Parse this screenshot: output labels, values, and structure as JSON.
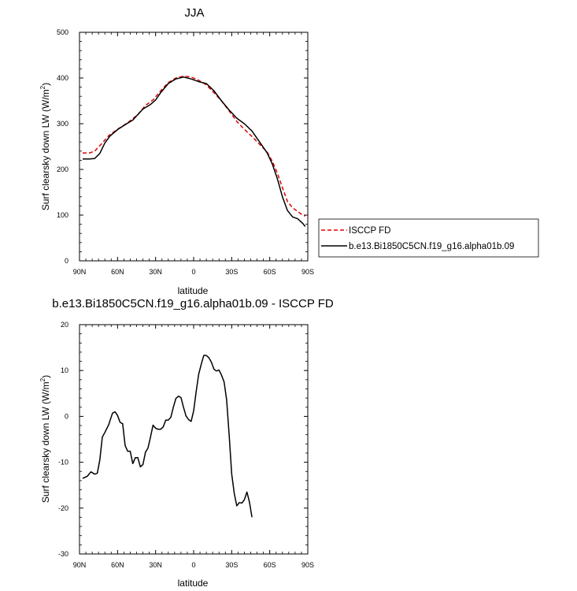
{
  "figure": {
    "panel_top_title": "JJA",
    "panel_bottom_title": "b.e13.Bi1850C5CN.f19_g16.alpha01b.09 - ISCCP FD"
  },
  "chart_data": [
    {
      "type": "line",
      "title": "JJA",
      "xlabel": "latitude",
      "ylabel_main": "Surf clearsky down LW (W/m",
      "ylabel_sup": "2",
      "ylabel_close": ")",
      "xlim": [
        90,
        -90
      ],
      "ylim": [
        0,
        500
      ],
      "xticks": [
        {
          "value": 90,
          "label": "90N"
        },
        {
          "value": 60,
          "label": "60N"
        },
        {
          "value": 30,
          "label": "30N"
        },
        {
          "value": 0,
          "label": "0"
        },
        {
          "value": -30,
          "label": "30S"
        },
        {
          "value": -60,
          "label": "60S"
        },
        {
          "value": -90,
          "label": "90S"
        }
      ],
      "yticks": [
        0,
        100,
        200,
        300,
        400,
        500
      ],
      "legend": {
        "position": "right-outside"
      },
      "series": [
        {
          "name": "ISCCP FD",
          "color": "#dd0000",
          "dash": "dashed",
          "points": [
            [
              87.5,
              236
            ],
            [
              82,
              236
            ],
            [
              78,
              240
            ],
            [
              72,
              258
            ],
            [
              67,
              274
            ],
            [
              60,
              288
            ],
            [
              52,
              302
            ],
            [
              44,
              320
            ],
            [
              38,
              340
            ],
            [
              32,
              352
            ],
            [
              26,
              372
            ],
            [
              20,
              390
            ],
            [
              14,
              400
            ],
            [
              8,
              404
            ],
            [
              2,
              402
            ],
            [
              -4,
              395
            ],
            [
              -10,
              385
            ],
            [
              -16,
              368
            ],
            [
              -22,
              350
            ],
            [
              -28,
              328
            ],
            [
              -34,
              305
            ],
            [
              -40,
              288
            ],
            [
              -46,
              272
            ],
            [
              -52,
              255
            ],
            [
              -58,
              238
            ],
            [
              -62,
              218
            ],
            [
              -66,
              192
            ],
            [
              -70,
              160
            ],
            [
              -74,
              130
            ],
            [
              -78,
              116
            ],
            [
              -82,
              108
            ],
            [
              -86,
              100
            ],
            [
              -88,
              98
            ]
          ]
        },
        {
          "name": "b.e13.Bi1850C5CN.f19_g16.alpha01b.09",
          "color": "#000000",
          "dash": "solid",
          "points": [
            [
              87.5,
              223
            ],
            [
              82,
              223
            ],
            [
              78,
              224
            ],
            [
              74,
              235
            ],
            [
              70,
              258
            ],
            [
              66,
              273
            ],
            [
              60,
              287
            ],
            [
              54,
              298
            ],
            [
              48,
              308
            ],
            [
              44,
              320
            ],
            [
              40,
              332
            ],
            [
              34,
              342
            ],
            [
              30,
              352
            ],
            [
              26,
              368
            ],
            [
              20,
              388
            ],
            [
              14,
              398
            ],
            [
              8,
              402
            ],
            [
              2,
              398
            ],
            [
              -4,
              392
            ],
            [
              -10,
              388
            ],
            [
              -16,
              372
            ],
            [
              -22,
              350
            ],
            [
              -28,
              330
            ],
            [
              -34,
              312
            ],
            [
              -40,
              300
            ],
            [
              -46,
              284
            ],
            [
              -52,
              260
            ],
            [
              -58,
              236
            ],
            [
              -62,
              212
            ],
            [
              -66,
              180
            ],
            [
              -70,
              140
            ],
            [
              -74,
              110
            ],
            [
              -78,
              96
            ],
            [
              -82,
              92
            ],
            [
              -86,
              82
            ],
            [
              -88,
              75
            ]
          ]
        }
      ]
    },
    {
      "type": "line",
      "title": "b.e13.Bi1850C5CN.f19_g16.alpha01b.09 - ISCCP FD",
      "xlabel": "latitude",
      "ylabel_main": "Surf clearsky down LW (W/m",
      "ylabel_sup": "2",
      "ylabel_close": ")",
      "xlim": [
        90,
        -90
      ],
      "ylim": [
        -30,
        20
      ],
      "xticks": [
        {
          "value": 90,
          "label": "90N"
        },
        {
          "value": 60,
          "label": "60N"
        },
        {
          "value": 30,
          "label": "30N"
        },
        {
          "value": 0,
          "label": "0"
        },
        {
          "value": -30,
          "label": "30S"
        },
        {
          "value": -60,
          "label": "60S"
        },
        {
          "value": -90,
          "label": "90S"
        }
      ],
      "yticks": [
        -30,
        -20,
        -10,
        0,
        10,
        20
      ],
      "series": [
        {
          "name": "",
          "color": "#000000",
          "dash": "solid",
          "points": [
            [
              87.5,
              -13.5
            ],
            [
              84,
              -13.1
            ],
            [
              81,
              -12.1
            ],
            [
              78,
              -12.6
            ],
            [
              76,
              -12.4
            ],
            [
              74,
              -9.5
            ],
            [
              72,
              -4.5
            ],
            [
              70,
              -3.5
            ],
            [
              67,
              -1.8
            ],
            [
              64,
              0.7
            ],
            [
              62,
              1.0
            ],
            [
              60,
              0.2
            ],
            [
              58,
              -1.3
            ],
            [
              56,
              -1.6
            ],
            [
              54,
              -6.4
            ],
            [
              52,
              -7.6
            ],
            [
              50,
              -7.6
            ],
            [
              48,
              -10.3
            ],
            [
              46,
              -9.0
            ],
            [
              44,
              -9.0
            ],
            [
              42,
              -11.0
            ],
            [
              40,
              -10.5
            ],
            [
              38,
              -7.8
            ],
            [
              36,
              -6.9
            ],
            [
              34,
              -4.5
            ],
            [
              32,
              -1.9
            ],
            [
              30,
              -2.6
            ],
            [
              28,
              -2.8
            ],
            [
              26,
              -2.8
            ],
            [
              24,
              -2.3
            ],
            [
              22,
              -0.8
            ],
            [
              20,
              -0.8
            ],
            [
              18,
              -0.2
            ],
            [
              16,
              2.0
            ],
            [
              14,
              3.9
            ],
            [
              12,
              4.4
            ],
            [
              10,
              4.1
            ],
            [
              8,
              2.0
            ],
            [
              6,
              0.1
            ],
            [
              4,
              -0.7
            ],
            [
              2,
              -1.1
            ],
            [
              0,
              1.2
            ],
            [
              -2,
              5.4
            ],
            [
              -4,
              9.2
            ],
            [
              -6,
              11.4
            ],
            [
              -8,
              13.3
            ],
            [
              -10,
              13.3
            ],
            [
              -12,
              12.8
            ],
            [
              -14,
              11.8
            ],
            [
              -16,
              10.3
            ],
            [
              -18,
              9.9
            ],
            [
              -20,
              10.1
            ],
            [
              -22,
              9.0
            ],
            [
              -24,
              7.5
            ],
            [
              -26,
              3.6
            ],
            [
              -28,
              -4.0
            ],
            [
              -30,
              -12.5
            ],
            [
              -32,
              -16.8
            ],
            [
              -34,
              -19.5
            ],
            [
              -36,
              -18.8
            ],
            [
              -38,
              -18.9
            ],
            [
              -40,
              -18.2
            ],
            [
              -42,
              -16.5
            ],
            [
              -44,
              -18.7
            ],
            [
              -46,
              -22.0
            ]
          ]
        }
      ]
    }
  ]
}
